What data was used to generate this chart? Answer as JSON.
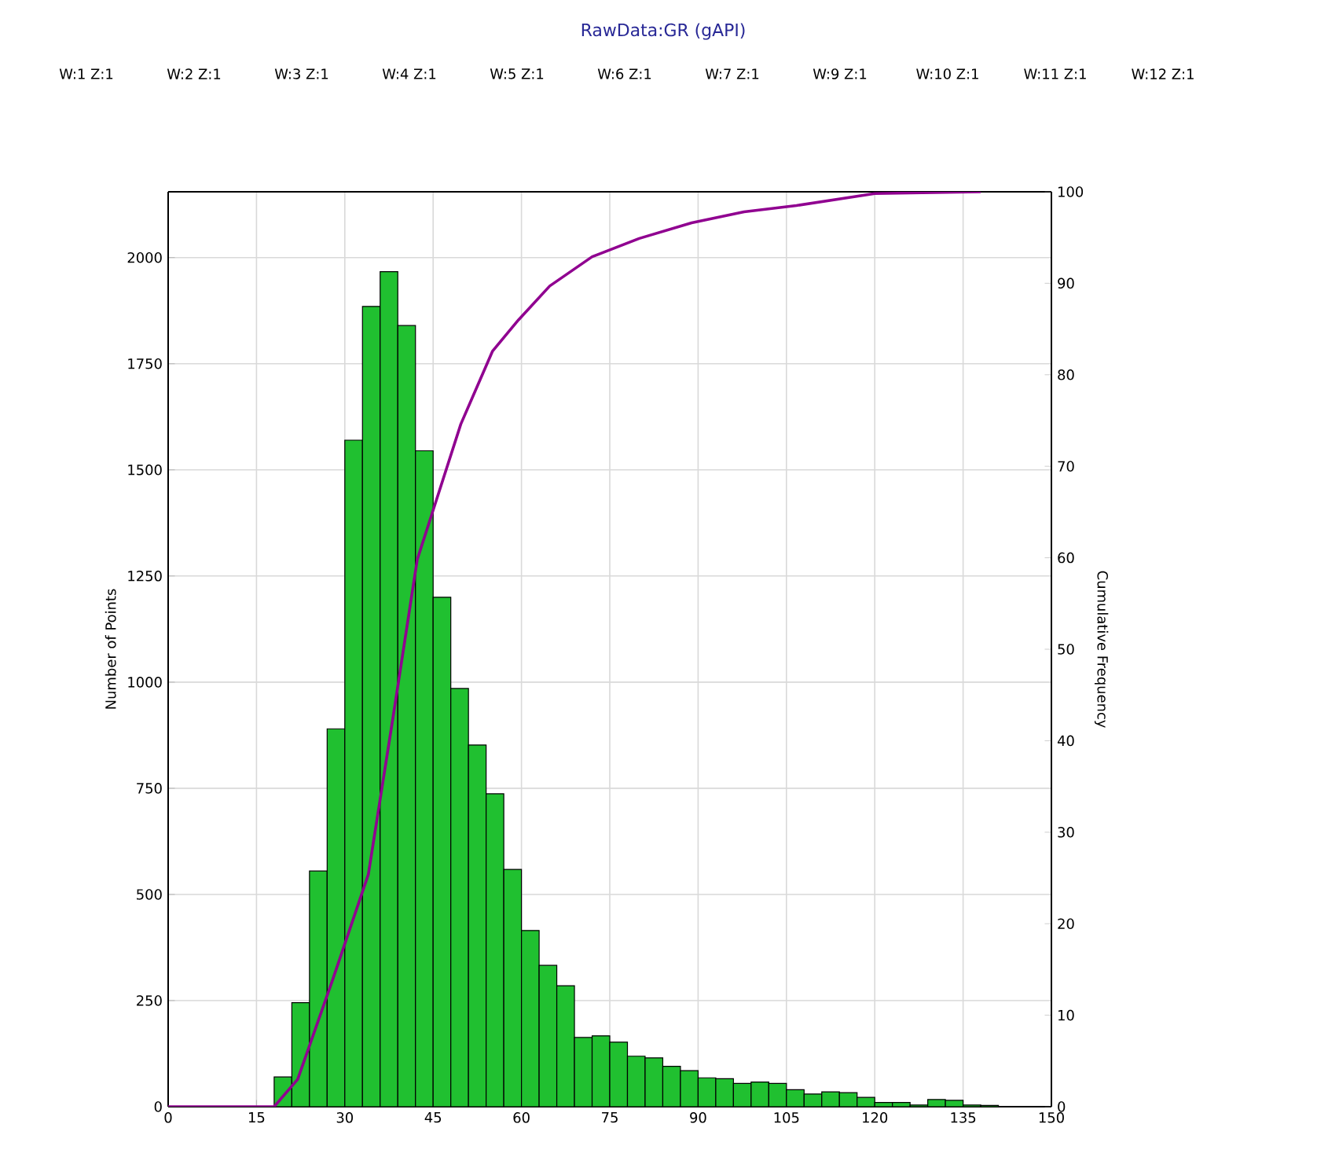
{
  "chart_data": {
    "type": "histogram",
    "title": "RawData:GR (gAPI)",
    "ylabel": "Number of Points",
    "y2label": "Cumulative Frequency",
    "annotations": [
      "W:1 Z:1",
      "W:2 Z:1",
      "W:3 Z:1",
      "W:4 Z:1",
      "W:5 Z:1",
      "W:6 Z:1",
      "W:7 Z:1",
      "W:9 Z:1",
      "W:10 Z:1",
      "W:11 Z:1",
      "W:12 Z:1"
    ],
    "xlim": [
      0,
      150
    ],
    "xticks": [
      0,
      15,
      30,
      45,
      60,
      75,
      90,
      105,
      120,
      135,
      150
    ],
    "ylim": [
      0,
      2155
    ],
    "yticks": [
      0,
      250,
      500,
      750,
      1000,
      1250,
      1500,
      1750,
      2000
    ],
    "y2lim": [
      0,
      100
    ],
    "y2ticks": [
      0,
      10,
      20,
      30,
      40,
      50,
      60,
      70,
      80,
      90,
      100
    ],
    "grid": true,
    "series": [
      {
        "color": "#20c030",
        "bins": [
          18,
          21,
          24,
          27,
          30,
          33,
          36,
          39,
          42,
          45,
          48,
          51,
          54,
          57,
          60,
          63,
          66,
          69,
          72,
          75,
          78,
          81,
          84,
          87,
          90,
          93,
          96,
          99,
          102,
          105,
          108,
          111,
          114,
          117,
          120,
          123,
          126,
          129,
          132,
          135,
          138,
          141
        ],
        "values": [
          70,
          245,
          555,
          890,
          1570,
          1885,
          1967,
          1840,
          1545,
          1200,
          985,
          852,
          737,
          559,
          415,
          333,
          285,
          163,
          167,
          152,
          119,
          115,
          95,
          85,
          68,
          66,
          55,
          58,
          55,
          40,
          30,
          35,
          33,
          22,
          10,
          10,
          4,
          17,
          15,
          4,
          3
        ]
      },
      {
        "type": "line",
        "axis": "y2",
        "color": "#900090",
        "x": [
          0,
          18,
          22,
          28,
          34,
          38.2,
          42.3,
          44.8,
          49.7,
          55.1,
          59.5,
          64.8,
          72,
          80,
          88.9,
          97.8,
          106.7,
          120,
          138
        ],
        "values": [
          0,
          0,
          3,
          14,
          25.4,
          42.6,
          59.8,
          64.8,
          74.6,
          82.6,
          86,
          89.7,
          92.9,
          94.9,
          96.6,
          97.8,
          98.5,
          99.8,
          100
        ]
      }
    ]
  }
}
